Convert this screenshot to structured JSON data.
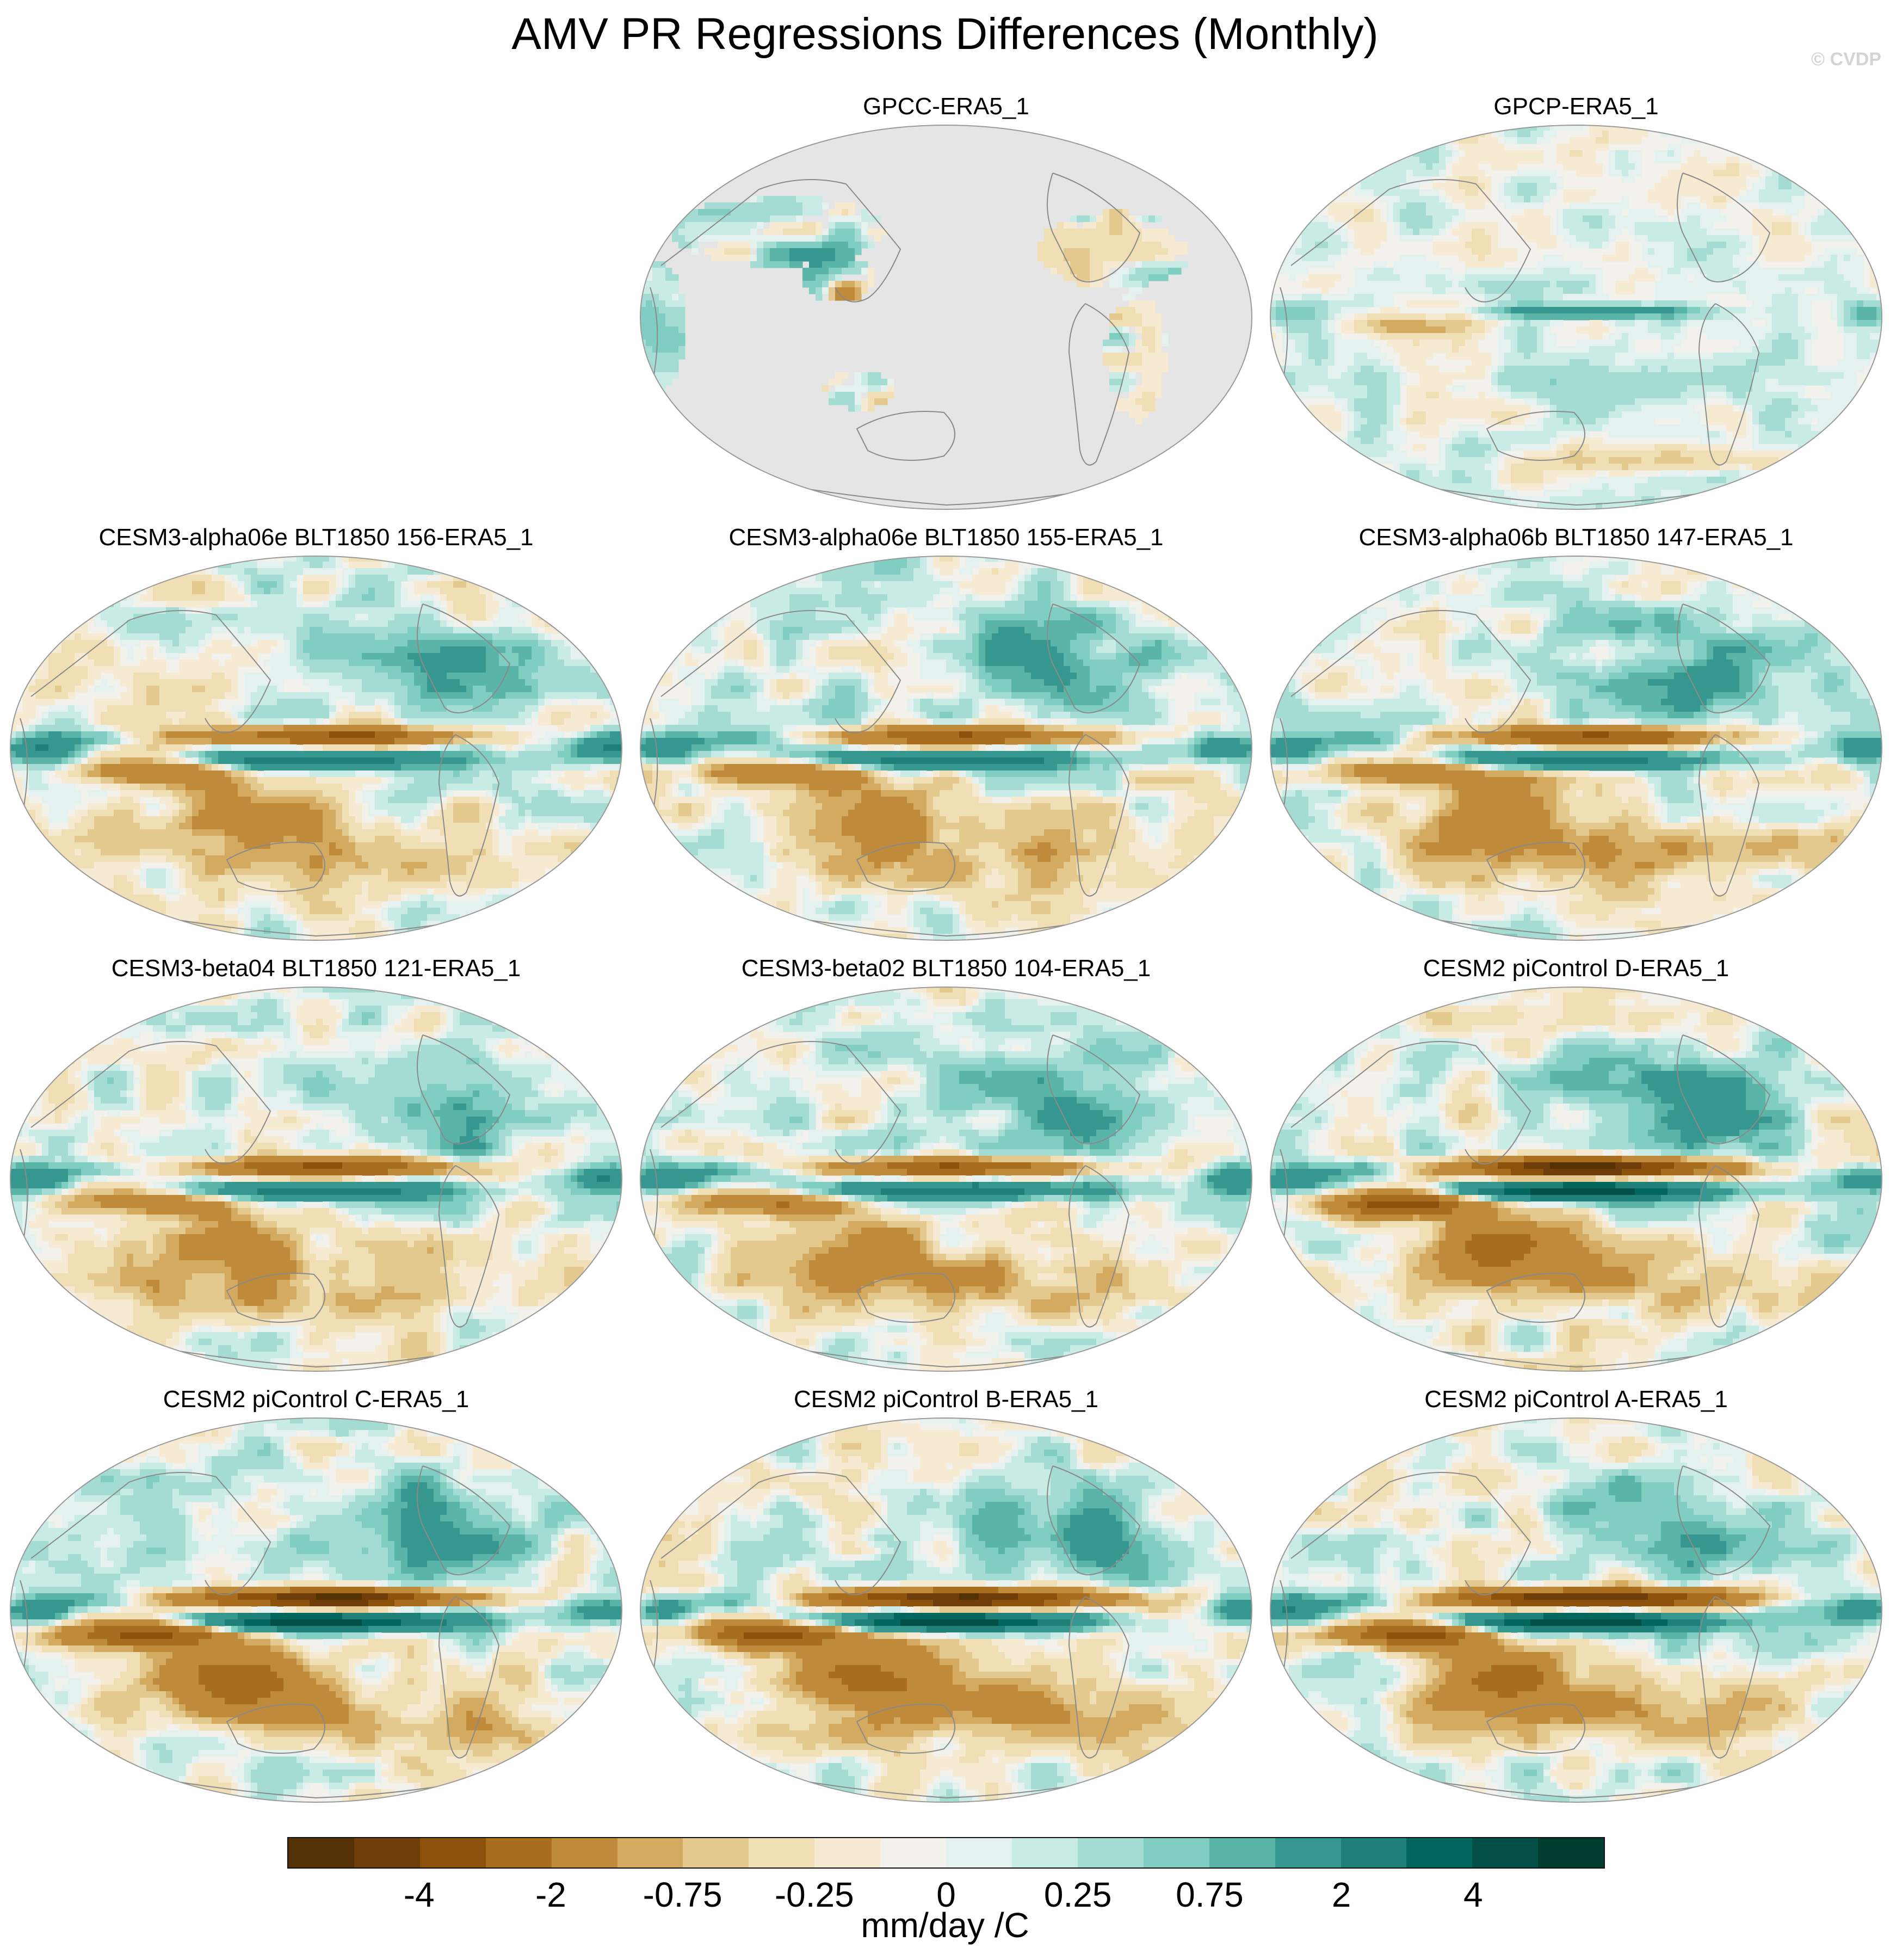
{
  "title": "AMV PR Regressions Differences (Monthly)",
  "watermark": "© CVDP",
  "panels": [
    {
      "title": "GPCC-ERA5_1",
      "style": "land_only"
    },
    {
      "title": "GPCP-ERA5_1",
      "style": "weak"
    },
    {
      "title": "CESM3-alpha06e BLT1850 156-ERA5_1",
      "style": "model"
    },
    {
      "title": "CESM3-alpha06e BLT1850 155-ERA5_1",
      "style": "model"
    },
    {
      "title": "CESM3-alpha06b BLT1850 147-ERA5_1",
      "style": "model"
    },
    {
      "title": "CESM3-beta04 BLT1850 121-ERA5_1",
      "style": "model"
    },
    {
      "title": "CESM3-beta02 BLT1850 104-ERA5_1",
      "style": "model"
    },
    {
      "title": "CESM2 piControl D-ERA5_1",
      "style": "strong"
    },
    {
      "title": "CESM2 piControl C-ERA5_1",
      "style": "strong"
    },
    {
      "title": "CESM2 piControl B-ERA5_1",
      "style": "strong"
    },
    {
      "title": "CESM2 piControl A-ERA5_1",
      "style": "strong"
    }
  ],
  "colorbar": {
    "units": "mm/day /C",
    "labels": [
      "-4",
      "-2",
      "-0.75",
      "-0.25",
      "0",
      "0.25",
      "0.75",
      "2",
      "4"
    ],
    "colors": [
      "#543005",
      "#6f3d0a",
      "#8c510a",
      "#a86d1e",
      "#bf8a3a",
      "#d3aa5f",
      "#e3c98d",
      "#f0dfb4",
      "#f6ebd2",
      "#f3f1ec",
      "#e4f1ef",
      "#c9ebe5",
      "#a4dcd3",
      "#80cdc1",
      "#5ab4a8",
      "#35978f",
      "#1e8078",
      "#01665e",
      "#014f47",
      "#003c30"
    ]
  },
  "colors": {
    "land_mask": "#e5e5e5",
    "coastline": "#8a8a8a",
    "map_border": "#9a9a9a"
  }
}
